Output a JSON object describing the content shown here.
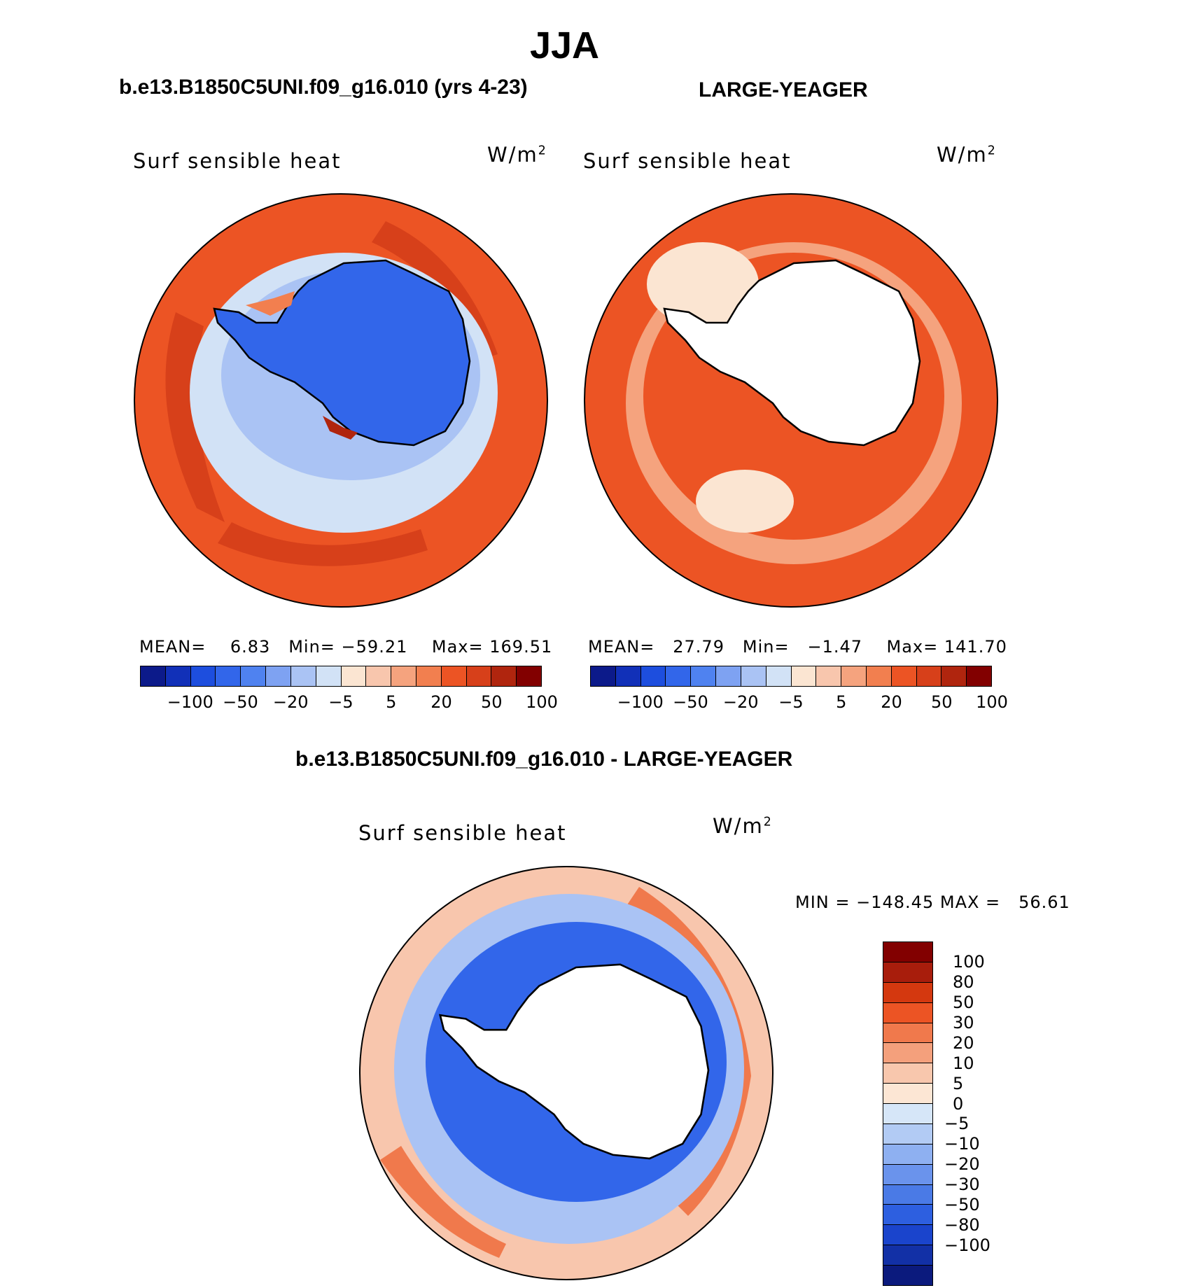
{
  "figure": {
    "season": "JJA",
    "case_title": "b.e13.B1850C5UNI.f09_g16.010 (yrs 4-23)",
    "control_title": "LARGE-YEAGER",
    "diff_title": "b.e13.B1850C5UNI.f09_g16.010 - LARGE-YEAGER"
  },
  "panels": {
    "left": {
      "variable": "Surf sensible heat",
      "units": "W/m",
      "units_exp": "2",
      "mean_label": "MEAN=",
      "mean": "6.83",
      "min_label": "Min=",
      "min": "−59.21",
      "max_label": "Max=",
      "max": "169.51"
    },
    "right": {
      "variable": "Surf sensible heat",
      "units": "W/m",
      "units_exp": "2",
      "mean_label": "MEAN=",
      "mean": "27.79",
      "min_label": "Min=",
      "min": "−1.47",
      "max_label": "Max=",
      "max": "141.70"
    },
    "diff": {
      "variable": "Surf sensible heat",
      "units": "W/m",
      "units_exp": "2",
      "min_label": "MIN =",
      "min": "−148.45",
      "max_label": "MAX =",
      "max": "56.61"
    }
  },
  "colorbars": {
    "main_colors": [
      "#0c1a8a",
      "#1130b8",
      "#1d4ede",
      "#3266ea",
      "#4f82f0",
      "#7ea2f2",
      "#aac3f4",
      "#d2e2f6",
      "#fbe5d2",
      "#f8c6ad",
      "#f5a37e",
      "#f27f4f",
      "#ec5424",
      "#d7401a",
      "#b0250e",
      "#820000"
    ],
    "main_ticks": [
      "−100",
      "−50",
      "−20",
      "−5",
      "5",
      "20",
      "50",
      "100"
    ],
    "diff_colors": [
      "#820000",
      "#a81d0c",
      "#d4380f",
      "#ec5424",
      "#f0794c",
      "#f4a07c",
      "#f8c7ad",
      "#fce6d4",
      "#d6e6f8",
      "#b2cbf4",
      "#8eb0f1",
      "#6a93ec",
      "#4a7ae6",
      "#2d5fe0",
      "#1a44cc",
      "#1230a6",
      "#0b1a7d"
    ],
    "diff_ticks": [
      "100",
      "80",
      "50",
      "30",
      "20",
      "10",
      "5",
      "0",
      "−5",
      "−10",
      "−20",
      "−30",
      "−50",
      "−80",
      "−100"
    ]
  },
  "map_colors": {
    "land_mask": "#ffffff",
    "left_ocean": "#ec5424",
    "left_ocean_dark": "#d7401a",
    "left_ice": "#d2e2f6",
    "left_ice_mid": "#aac3f4",
    "left_land": "#3266ea",
    "right_ocean": "#ec5424",
    "right_ocean_light": "#f5a37e",
    "right_ocean_pale": "#fbe5d2",
    "diff_ring": "#3266ea",
    "diff_ring_light": "#aac3f4",
    "diff_outer": "#f8c6ad",
    "diff_outer_red": "#f0794c"
  }
}
